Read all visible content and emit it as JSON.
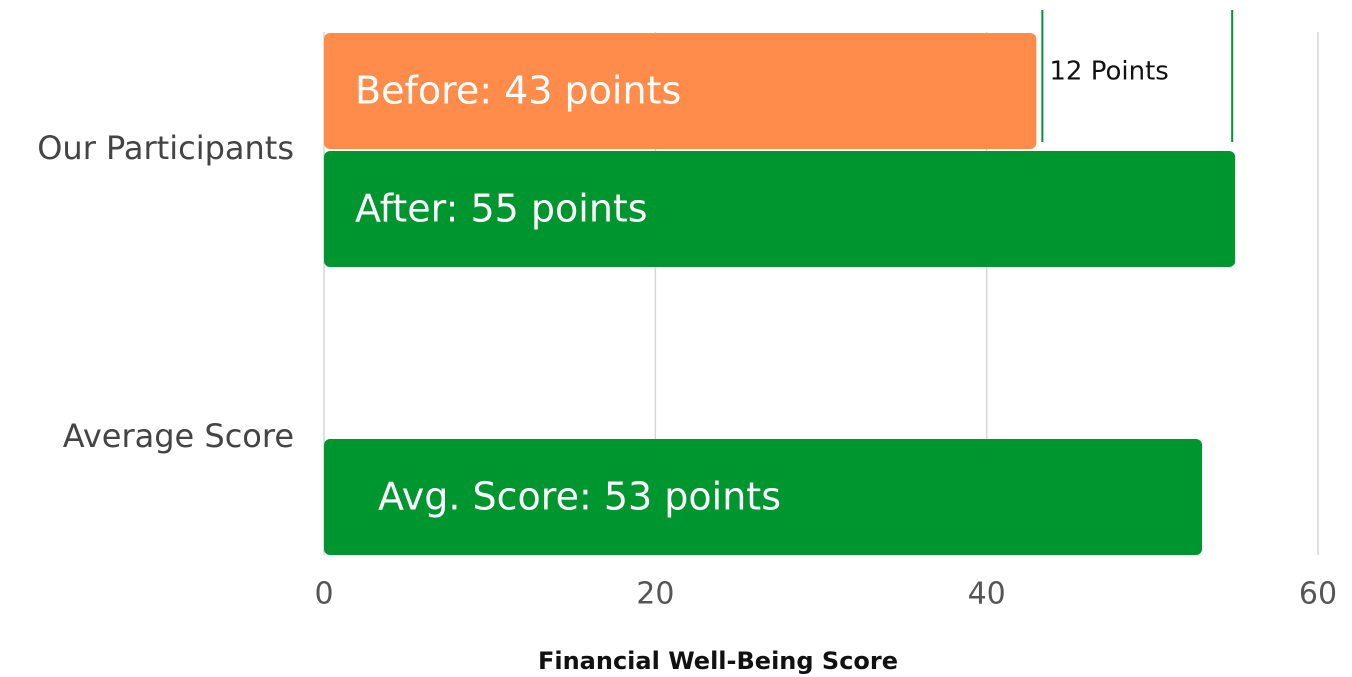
{
  "chart_data": {
    "type": "hbar",
    "categories": [
      "Our Participants",
      "Average Score"
    ],
    "series": [
      {
        "color": "#ff8c4a",
        "values": [
          43,
          null
        ],
        "value_labels": [
          "Before: 43 points",
          null
        ]
      },
      {
        "color": "#00962f",
        "values": [
          55,
          53
        ],
        "value_labels": [
          "After: 55 points",
          "Avg. Score: 53 points"
        ]
      }
    ],
    "xlim": [
      0,
      60
    ],
    "xticks": [
      0,
      20,
      40,
      60
    ],
    "xlabel": "Financial Well-Being Score",
    "annotation": "12 Points",
    "grid": true
  }
}
